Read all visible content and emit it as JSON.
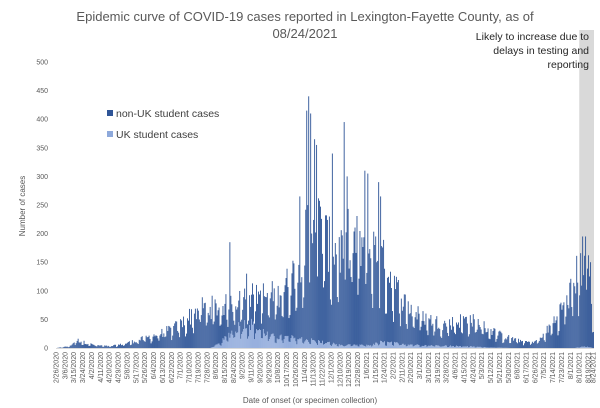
{
  "chart_data": {
    "type": "bar",
    "stacked": true,
    "title_line1": "Epidemic curve of COVID-19 cases reported in Lexington-Fayette County, as of",
    "title_line2": "08/24/2021",
    "ylabel": "Number of cases",
    "xlabel": "Date of onset (or specimen collection)",
    "ylim": [
      0,
      500
    ],
    "yticks": [
      0,
      50,
      100,
      150,
      200,
      250,
      300,
      350,
      400,
      450,
      500
    ],
    "grid": false,
    "legend_position": "top-left",
    "x_range": [
      "2020-02-26",
      "2021-08-24"
    ],
    "x_tick_labels": [
      "2/26/2020",
      "3/6/2020",
      "3/15/2020",
      "3/24/2020",
      "4/2/2020",
      "4/11/2020",
      "4/20/2020",
      "4/29/2020",
      "5/8/2020",
      "5/17/2020",
      "5/26/2020",
      "6/4/2020",
      "6/13/2020",
      "6/22/2020",
      "7/1/2020",
      "7/10/2020",
      "7/19/2020",
      "7/28/2020",
      "8/6/2020",
      "8/15/2020",
      "8/24/2020",
      "9/2/2020",
      "9/11/2020",
      "9/20/2020",
      "9/29/2020",
      "10/8/2020",
      "10/17/2020",
      "10/26/2020",
      "11/4/2020",
      "11/13/2020",
      "11/22/2020",
      "12/1/2020",
      "12/10/2020",
      "12/19/2020",
      "12/28/2020",
      "1/6/2021",
      "1/15/2021",
      "1/24/2021",
      "2/2/2021",
      "2/11/2021",
      "2/20/2021",
      "3/1/2021",
      "3/10/2021",
      "3/19/2021",
      "3/28/2021",
      "4/6/2021",
      "4/15/2021",
      "4/24/2021",
      "5/3/2021",
      "5/12/2021",
      "5/21/2021",
      "5/30/2021",
      "6/8/2021",
      "6/17/2021",
      "6/26/2021",
      "7/5/2021",
      "7/14/2021",
      "7/23/2021",
      "8/1/2021",
      "8/10/2021",
      "8/19/2021",
      "8/24/2021"
    ],
    "series": [
      {
        "name": "non-UK student cases",
        "color": "#2F5597",
        "keypoints_date_value": [
          [
            "2020-02-26",
            0
          ],
          [
            "2020-03-10",
            3
          ],
          [
            "2020-03-18",
            14
          ],
          [
            "2020-03-25",
            10
          ],
          [
            "2020-04-05",
            5
          ],
          [
            "2020-04-20",
            3
          ],
          [
            "2020-05-01",
            6
          ],
          [
            "2020-05-15",
            12
          ],
          [
            "2020-05-31",
            20
          ],
          [
            "2020-06-15",
            28
          ],
          [
            "2020-06-30",
            40
          ],
          [
            "2020-07-10",
            55
          ],
          [
            "2020-07-20",
            70
          ],
          [
            "2020-07-31",
            72
          ],
          [
            "2020-08-10",
            62
          ],
          [
            "2020-08-20",
            55
          ],
          [
            "2020-09-01",
            48
          ],
          [
            "2020-09-15",
            60
          ],
          [
            "2020-09-30",
            70
          ],
          [
            "2020-10-10",
            80
          ],
          [
            "2020-10-20",
            100
          ],
          [
            "2020-10-31",
            140
          ],
          [
            "2020-11-08",
            200
          ],
          [
            "2020-11-15",
            215
          ],
          [
            "2020-11-22",
            195
          ],
          [
            "2020-11-30",
            165
          ],
          [
            "2020-12-10",
            165
          ],
          [
            "2020-12-20",
            190
          ],
          [
            "2020-12-28",
            175
          ],
          [
            "2021-01-06",
            170
          ],
          [
            "2021-01-15",
            160
          ],
          [
            "2021-01-25",
            135
          ],
          [
            "2021-02-05",
            95
          ],
          [
            "2021-02-15",
            70
          ],
          [
            "2021-02-25",
            55
          ],
          [
            "2021-03-10",
            45
          ],
          [
            "2021-03-25",
            38
          ],
          [
            "2021-04-05",
            42
          ],
          [
            "2021-04-18",
            48
          ],
          [
            "2021-04-28",
            42
          ],
          [
            "2021-05-10",
            32
          ],
          [
            "2021-05-25",
            20
          ],
          [
            "2021-06-08",
            14
          ],
          [
            "2021-06-20",
            10
          ],
          [
            "2021-07-01",
            15
          ],
          [
            "2021-07-10",
            35
          ],
          [
            "2021-07-20",
            60
          ],
          [
            "2021-07-31",
            95
          ],
          [
            "2021-08-08",
            130
          ],
          [
            "2021-08-14",
            150
          ],
          [
            "2021-08-19",
            140
          ],
          [
            "2021-08-24",
            45
          ]
        ]
      },
      {
        "name": "UK student cases",
        "color": "#8EA9DB",
        "keypoints_date_value": [
          [
            "2020-02-26",
            0
          ],
          [
            "2020-07-31",
            0
          ],
          [
            "2020-08-10",
            8
          ],
          [
            "2020-08-20",
            25
          ],
          [
            "2020-08-31",
            40
          ],
          [
            "2020-09-10",
            42
          ],
          [
            "2020-09-20",
            32
          ],
          [
            "2020-10-01",
            20
          ],
          [
            "2020-10-20",
            18
          ],
          [
            "2020-11-05",
            15
          ],
          [
            "2020-11-25",
            10
          ],
          [
            "2020-12-10",
            5
          ],
          [
            "2021-01-10",
            5
          ],
          [
            "2021-01-20",
            10
          ],
          [
            "2021-02-05",
            8
          ],
          [
            "2021-03-01",
            5
          ],
          [
            "2021-04-15",
            3
          ],
          [
            "2021-05-10",
            1
          ],
          [
            "2021-06-01",
            0
          ],
          [
            "2021-08-05",
            0
          ],
          [
            "2021-08-15",
            3
          ],
          [
            "2021-08-24",
            0
          ]
        ]
      }
    ],
    "highlight_range": [
      "2021-08-10",
      "2021-08-24"
    ],
    "highlight_color": "#d9d9d9",
    "annotation_lines": [
      "Likely to increase due to",
      "delays in testing and",
      "reporting"
    ]
  }
}
